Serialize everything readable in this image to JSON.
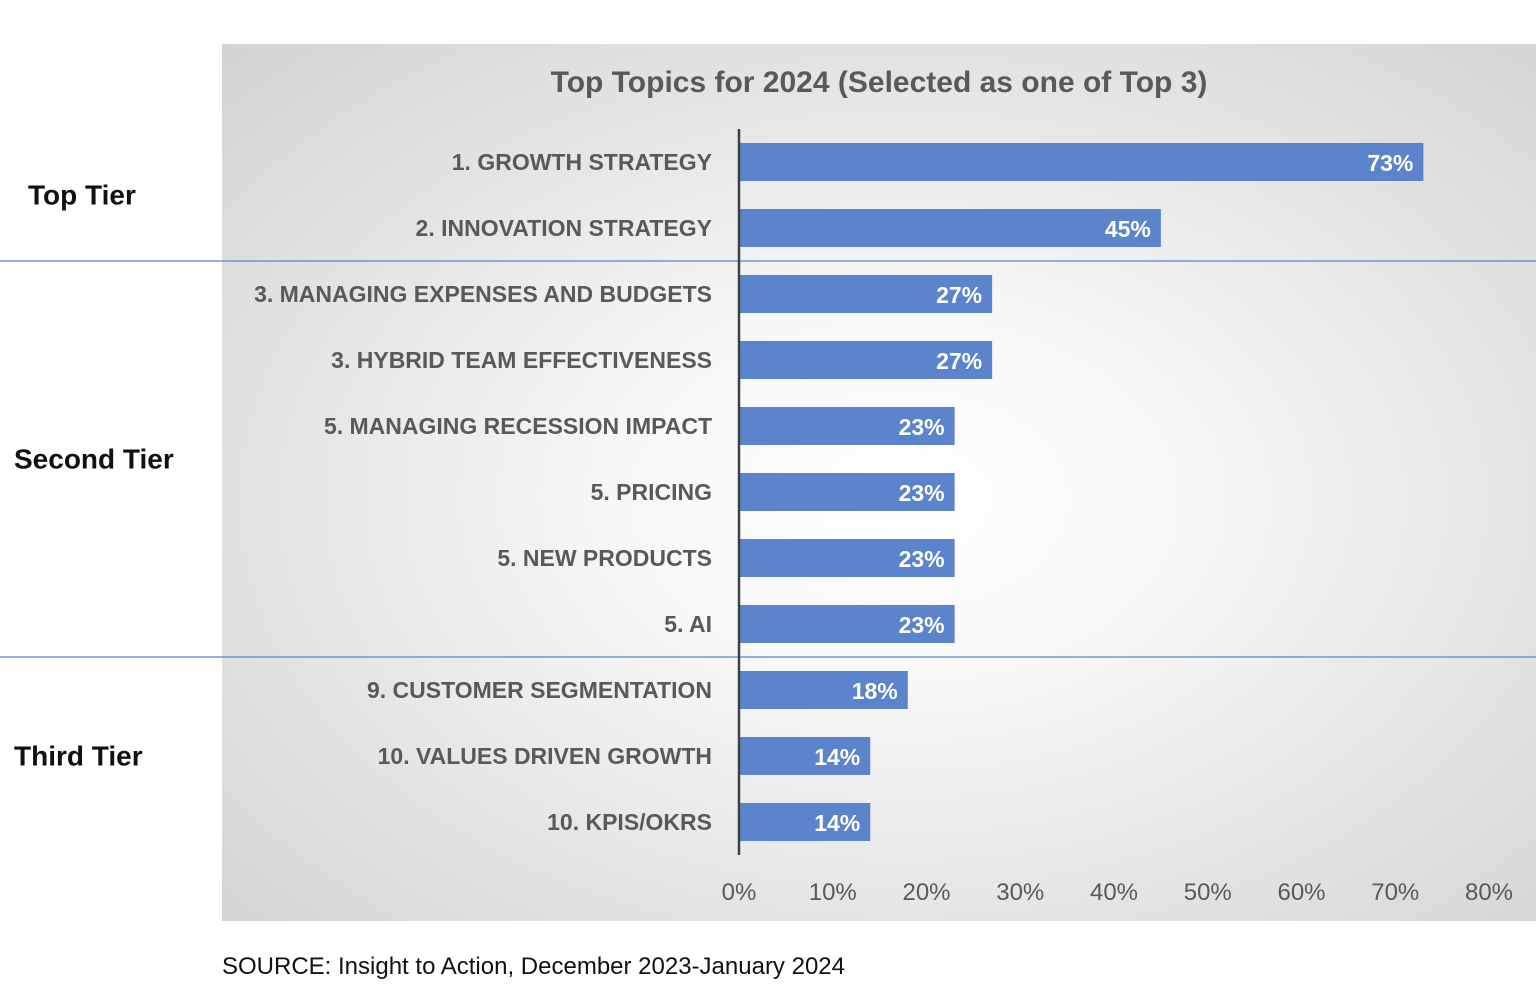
{
  "chart_data": {
    "type": "bar",
    "orientation": "horizontal",
    "title": "Top Topics for 2024 (Selected as one of Top 3)",
    "categories": [
      "1. GROWTH STRATEGY",
      "2. INNOVATION STRATEGY",
      "3. MANAGING EXPENSES AND BUDGETS",
      "3. HYBRID TEAM EFFECTIVENESS",
      "5. MANAGING RECESSION IMPACT",
      "5. PRICING",
      "5. NEW PRODUCTS",
      "5. AI",
      "9. CUSTOMER SEGMENTATION",
      "10. VALUES DRIVEN GROWTH",
      "10. KPIS/OKRS"
    ],
    "values": [
      73,
      45,
      27,
      27,
      23,
      23,
      23,
      23,
      18,
      14,
      14
    ],
    "value_labels": [
      "73%",
      "45%",
      "27%",
      "27%",
      "23%",
      "23%",
      "23%",
      "23%",
      "18%",
      "14%",
      "14%"
    ],
    "xlim": [
      0,
      80
    ],
    "x_ticks": [
      "0%",
      "10%",
      "20%",
      "30%",
      "40%",
      "50%",
      "60%",
      "70%",
      "80%"
    ],
    "xlabel": "",
    "ylabel": "",
    "grid": false,
    "legend": "none",
    "bar_color": "#5b84cc"
  },
  "tiers": [
    {
      "label": "Top Tier",
      "first": 0,
      "last": 1
    },
    {
      "label": "Second Tier",
      "first": 2,
      "last": 7
    },
    {
      "label": "Third Tier",
      "first": 8,
      "last": 10
    }
  ],
  "source": "SOURCE: Insight to Action, December 2023-January 2024"
}
